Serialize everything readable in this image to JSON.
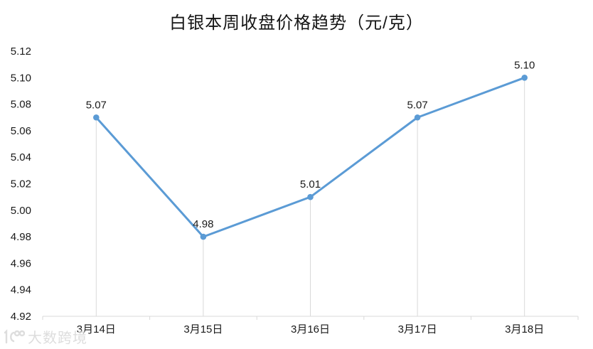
{
  "chart_data": {
    "type": "line",
    "title": "白银本周收盘价格趋势（元/克）",
    "categories": [
      "3月14日",
      "3月15日",
      "3月16日",
      "3月17日",
      "3月18日"
    ],
    "values": [
      5.07,
      4.98,
      5.01,
      5.07,
      5.1
    ],
    "data_labels": [
      "5.07",
      "4.98",
      "5.01",
      "5.07",
      "5.10"
    ],
    "xlabel": "",
    "ylabel": "",
    "ylim": [
      4.92,
      5.12
    ],
    "ytick_step": 0.02,
    "ytick_labels": [
      "4.92",
      "4.94",
      "4.96",
      "4.98",
      "5.00",
      "5.02",
      "5.04",
      "5.06",
      "5.08",
      "5.10",
      "5.12"
    ],
    "grid": "off",
    "drop_lines": true,
    "legend_position": "none",
    "line_color": "#5B9BD5",
    "marker_color": "#5B9BD5",
    "axis_color": "#D9D9D9",
    "text_color": "#1a1a1a"
  },
  "watermark": {
    "text": "大数跨境"
  }
}
